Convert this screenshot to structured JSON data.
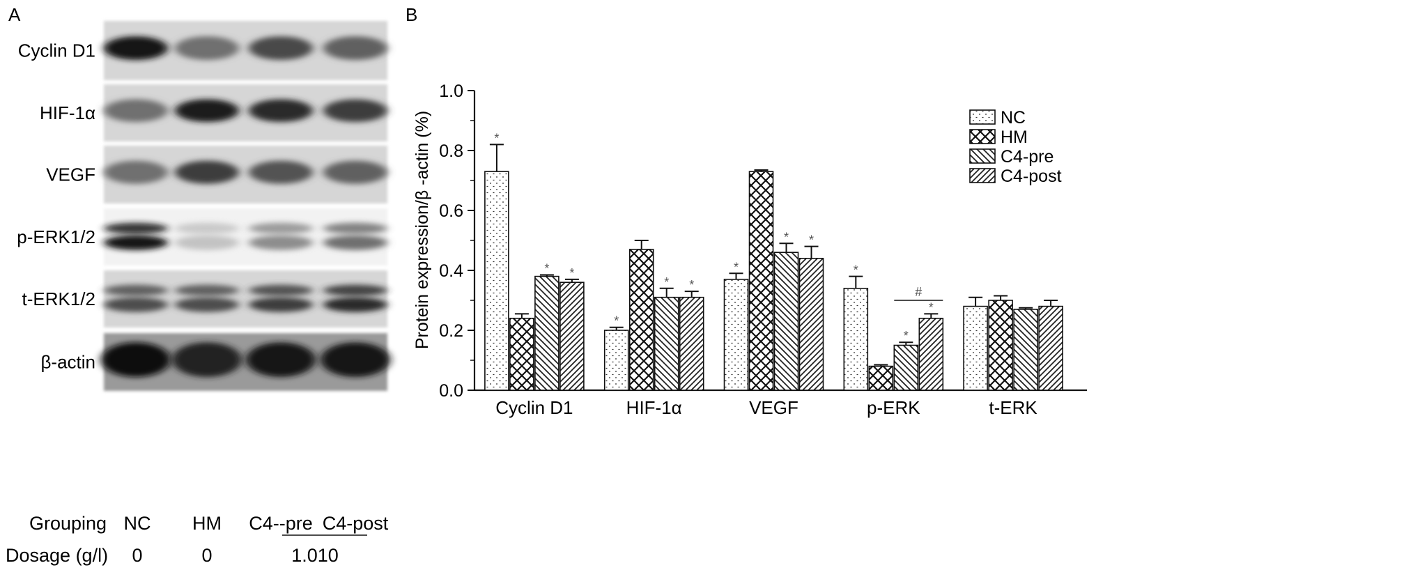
{
  "panel_a": {
    "label": "A",
    "bands": [
      {
        "name": "Cyclin D1",
        "intensities": [
          0.95,
          0.55,
          0.72,
          0.62
        ],
        "style": "single"
      },
      {
        "name": "HIF-1α",
        "intensities": [
          0.55,
          0.92,
          0.85,
          0.78
        ],
        "style": "single"
      },
      {
        "name": "VEGF",
        "intensities": [
          0.55,
          0.78,
          0.68,
          0.62
        ],
        "style": "single"
      },
      {
        "name": "p-ERK1/2",
        "intensities": [
          0.95,
          0.18,
          0.42,
          0.55
        ],
        "style": "double"
      },
      {
        "name": "t-ERK1/2",
        "intensities": [
          0.7,
          0.7,
          0.78,
          0.85
        ],
        "style": "double"
      },
      {
        "name": "β-actin",
        "intensities": [
          0.97,
          0.9,
          0.95,
          0.95
        ],
        "style": "single"
      }
    ],
    "grouping_label": "Grouping",
    "groups": [
      "NC",
      "HM",
      "C4--pre",
      "C4-post"
    ],
    "dosage_label": "Dosage (g/l)",
    "dosages": [
      "0",
      "0"
    ],
    "shared_dosage": "1.010"
  },
  "chart_data": {
    "type": "bar",
    "panel_label": "B",
    "title": "",
    "xlabel": "",
    "ylabel": "Protein expression/β -actin (%)",
    "ylim": [
      0,
      1.0
    ],
    "yticks": [
      "0.0",
      "0.2",
      "0.4",
      "0.6",
      "0.8",
      "1.0"
    ],
    "categories": [
      "Cyclin D1",
      "HIF-1α",
      "VEGF",
      "p-ERK",
      "t-ERK"
    ],
    "legend_position": "top-right",
    "series": [
      {
        "name": "NC",
        "pattern": "dots",
        "values": [
          0.73,
          0.2,
          0.37,
          0.34,
          0.28
        ],
        "errors": [
          0.09,
          0.01,
          0.02,
          0.04,
          0.03
        ],
        "stars": [
          true,
          true,
          true,
          true,
          false
        ]
      },
      {
        "name": "HM",
        "pattern": "cross",
        "values": [
          0.24,
          0.47,
          0.73,
          0.08,
          0.3
        ],
        "errors": [
          0.015,
          0.03,
          0.005,
          0.005,
          0.015
        ],
        "stars": [
          false,
          false,
          false,
          false,
          false
        ]
      },
      {
        "name": "C4-pre",
        "pattern": "diag-back",
        "values": [
          0.38,
          0.31,
          0.46,
          0.15,
          0.27
        ],
        "errors": [
          0.005,
          0.03,
          0.03,
          0.01,
          0.005
        ],
        "stars": [
          true,
          true,
          true,
          true,
          false
        ]
      },
      {
        "name": "C4-post",
        "pattern": "diag-fwd",
        "values": [
          0.36,
          0.31,
          0.44,
          0.24,
          0.28
        ],
        "errors": [
          0.01,
          0.02,
          0.04,
          0.015,
          0.02
        ],
        "stars": [
          true,
          true,
          true,
          true,
          false
        ]
      }
    ],
    "annotations": [
      {
        "text": "#",
        "category": "p-ERK",
        "from_series": "C4-pre",
        "to_series": "C4-post",
        "y": 0.3
      }
    ],
    "star_symbol": "*",
    "colors": {
      "bar_fill": "#ffffff",
      "pattern_ink": "#222222",
      "axis": "#111111"
    }
  }
}
